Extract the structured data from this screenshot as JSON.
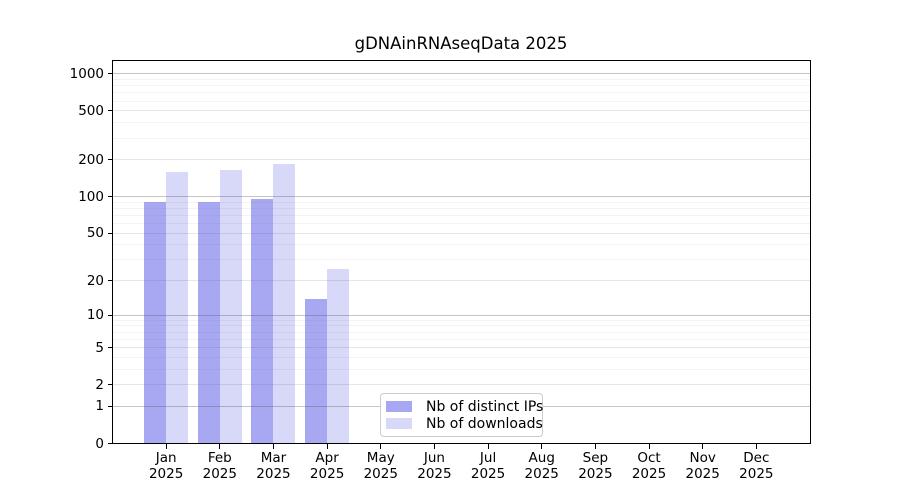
{
  "chart_data": {
    "type": "bar",
    "title": "gDNAinRNAseqData 2025",
    "categories": [
      "Jan",
      "Feb",
      "Mar",
      "Apr",
      "May",
      "Jun",
      "Jul",
      "Aug",
      "Sep",
      "Oct",
      "Nov",
      "Dec"
    ],
    "x_tick_year": "2025",
    "series": [
      {
        "name": "Nb of distinct IPs",
        "color": "#a8a8f2",
        "values": [
          90,
          90,
          95,
          14,
          0,
          0,
          0,
          0,
          0,
          0,
          0,
          0
        ]
      },
      {
        "name": "Nb of downloads",
        "color": "#d8d8f8",
        "values": [
          160,
          165,
          185,
          25,
          0,
          0,
          0,
          0,
          0,
          0,
          0,
          0
        ]
      }
    ],
    "xlabel": "",
    "ylabel": "",
    "y_ticks": [
      0,
      1,
      2,
      5,
      10,
      20,
      50,
      100,
      200,
      500,
      1000
    ],
    "y_major_grid": [
      1,
      10,
      100,
      1000
    ],
    "y_mid_grid": [
      2,
      5,
      20,
      50,
      200,
      500
    ],
    "y_minor_grid": [
      3,
      4,
      6,
      7,
      8,
      9,
      30,
      40,
      60,
      70,
      80,
      90,
      300,
      400,
      600,
      700,
      800,
      900
    ],
    "y_scale": "log1p",
    "ylim": [
      0,
      1250
    ],
    "grid": true,
    "legend_position": "lower center"
  },
  "colors": {
    "background": "#ffffff",
    "spine": "#000000",
    "text": "#000000",
    "legend_border": "#cccccc",
    "grid_major": "#c6c6c6",
    "grid_mid": "#e6e6e6",
    "grid_minor": "#f3f3f3"
  }
}
